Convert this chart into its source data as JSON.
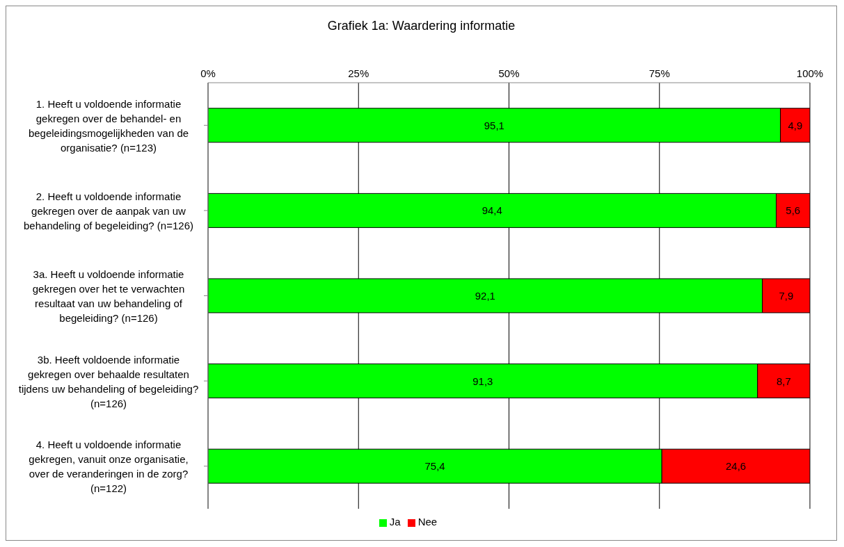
{
  "chart_data": {
    "type": "bar",
    "orientation": "horizontal",
    "stacked": true,
    "title": "Grafiek 1a: Waardering informatie",
    "categories": [
      "1. Heeft u voldoende informatie gekregen over de behandel- en begeleidingsmogelijkheden van de organisatie? (n=123)",
      "2. Heeft u voldoende informatie gekregen over de aanpak van uw behandeling of begeleiding? (n=126)",
      "3a. Heeft u voldoende informatie gekregen over het te verwachten resultaat van uw behandeling of begeleiding? (n=126)",
      "3b. Heeft voldoende informatie gekregen over behaalde resultaten tijdens uw behandeling of begeleiding? (n=126)",
      "4. Heeft u voldoende informatie gekregen, vanuit onze organisatie, over de veranderingen in de zorg? (n=122)"
    ],
    "series": [
      {
        "name": "Ja",
        "color": "#00ff00",
        "values": [
          95.1,
          94.4,
          92.1,
          91.3,
          75.4
        ],
        "value_labels": [
          "95,1",
          "94,4",
          "92,1",
          "91,3",
          "75,4"
        ]
      },
      {
        "name": "Nee",
        "color": "#ff0000",
        "values": [
          4.9,
          5.6,
          7.9,
          8.7,
          24.6
        ],
        "value_labels": [
          "4,9",
          "5,6",
          "7,9",
          "8,7",
          "24,6"
        ]
      }
    ],
    "xlim": [
      0,
      100
    ],
    "xticks": [
      {
        "value": 0,
        "label": "0%"
      },
      {
        "value": 25,
        "label": "25%"
      },
      {
        "value": 50,
        "label": "50%"
      },
      {
        "value": 75,
        "label": "75%"
      },
      {
        "value": 100,
        "label": "100%"
      }
    ],
    "grid": "x",
    "legend": "bottom"
  }
}
